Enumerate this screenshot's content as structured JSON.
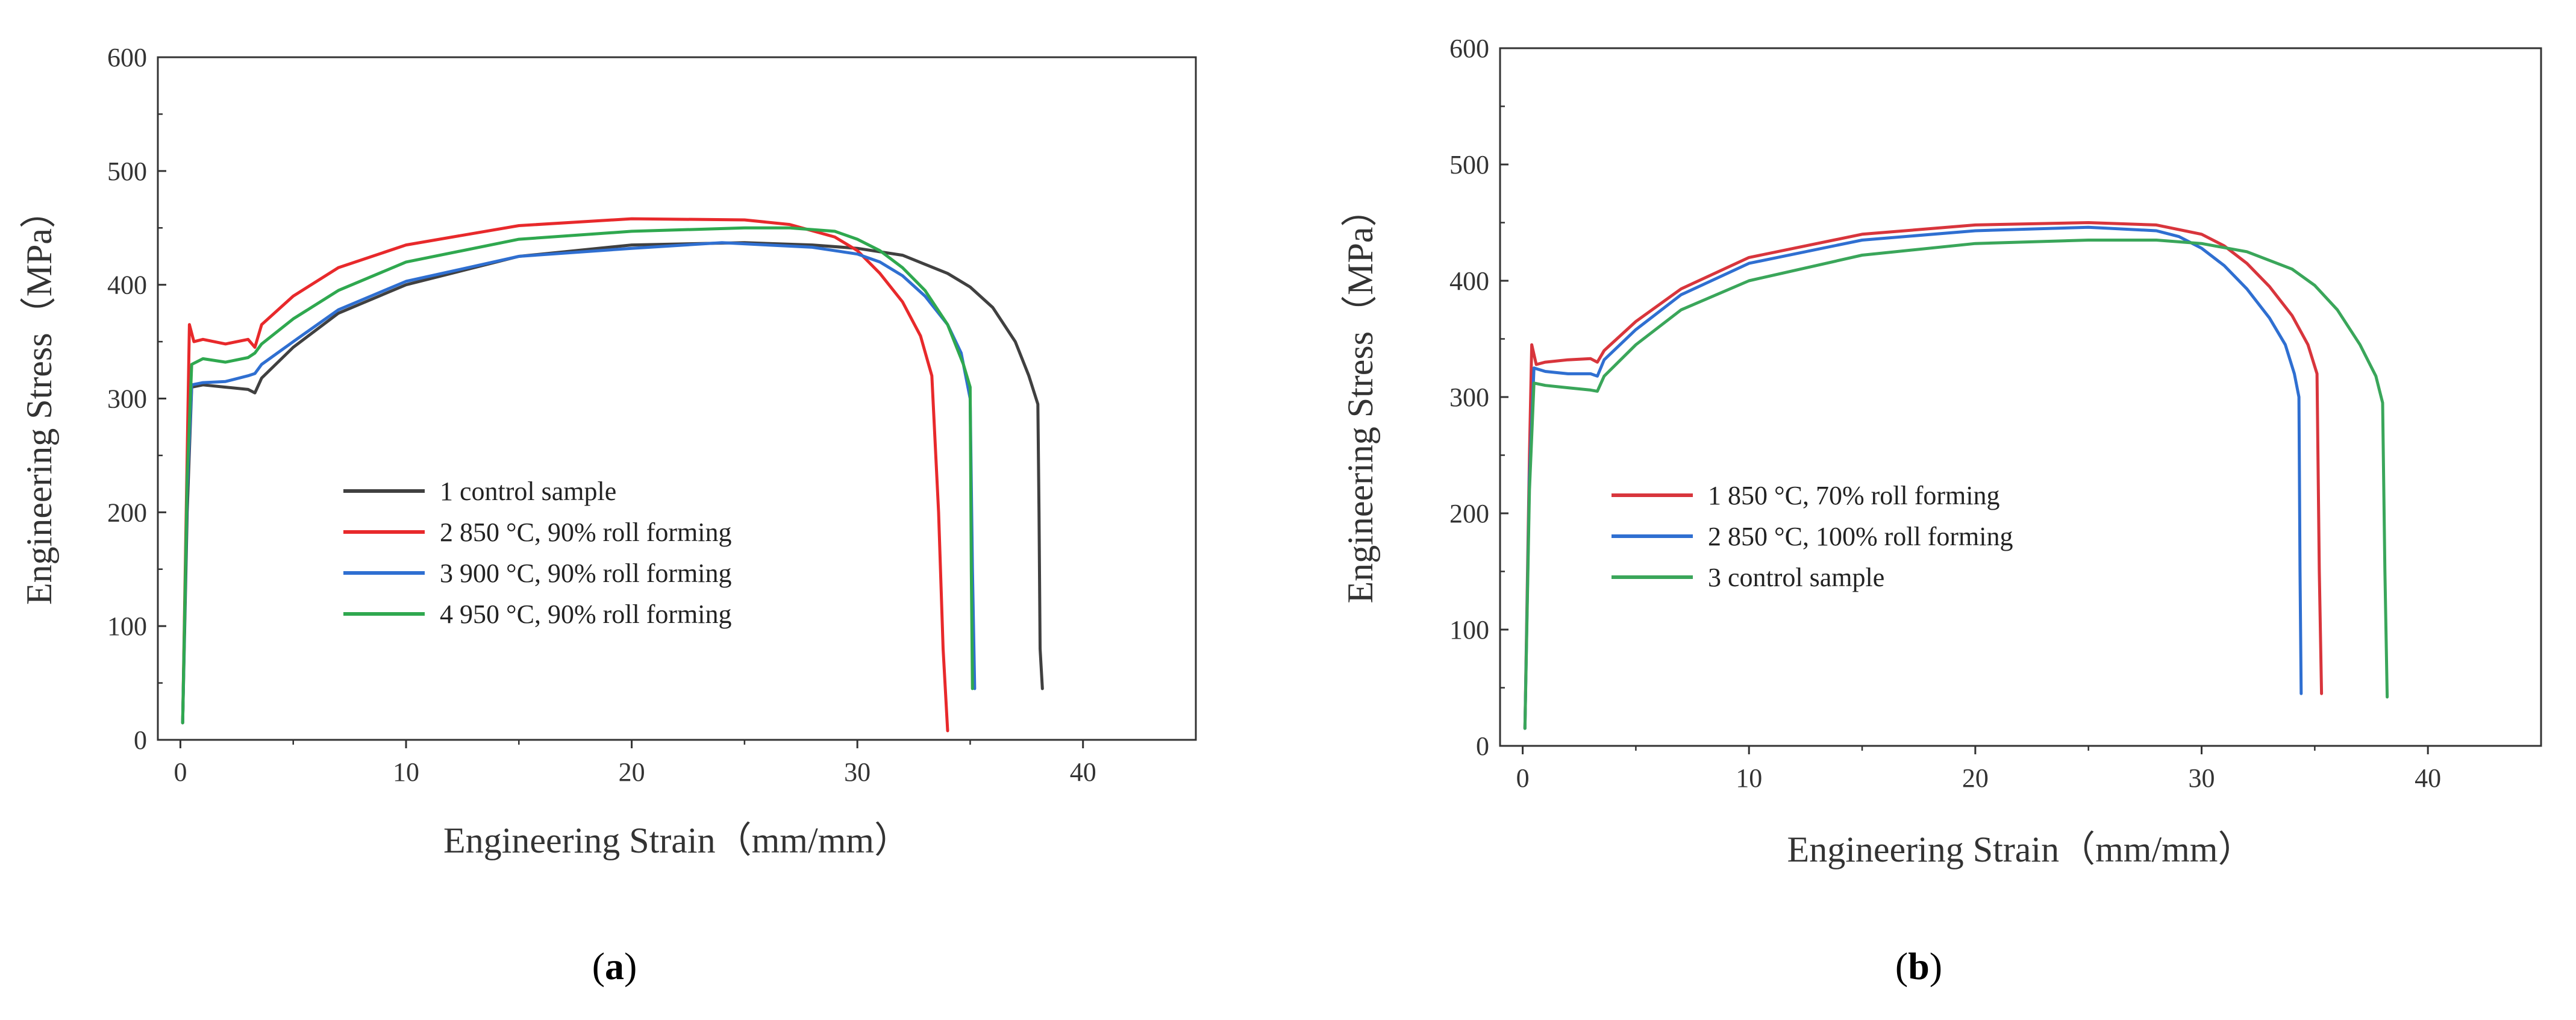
{
  "chart_data": [
    {
      "type": "line",
      "panel_label": "a",
      "xlabel": "Engineering Strain（mm/mm）",
      "ylabel": "Engineering Stress（MPa）",
      "xlim": [
        -1,
        45
      ],
      "ylim": [
        0,
        600
      ],
      "xticks": [
        0,
        10,
        20,
        30,
        40
      ],
      "yticks": [
        0,
        100,
        200,
        300,
        400,
        500,
        600
      ],
      "grid": false,
      "legend_position": "center-left",
      "series": [
        {
          "name": "1 control sample",
          "color": "#404040",
          "x": [
            0.1,
            0.3,
            0.5,
            1.0,
            2.0,
            3.0,
            3.3,
            3.6,
            5,
            7,
            10,
            15,
            20,
            25,
            28,
            30,
            32,
            34,
            35,
            36,
            37,
            37.6,
            38.0,
            38.05,
            38.1,
            38.2
          ],
          "y": [
            15,
            200,
            310,
            312,
            310,
            308,
            305,
            318,
            345,
            375,
            400,
            425,
            435,
            437,
            435,
            432,
            426,
            410,
            398,
            380,
            350,
            320,
            295,
            200,
            80,
            45
          ]
        },
        {
          "name": "2 850 °C, 90% roll forming",
          "color": "#e8292b",
          "x": [
            0.1,
            0.3,
            0.4,
            0.6,
            1.0,
            2.0,
            3.0,
            3.3,
            3.6,
            5,
            7,
            10,
            15,
            20,
            25,
            27,
            29,
            30,
            31,
            32,
            32.8,
            33.3,
            33.6,
            33.8,
            34.0
          ],
          "y": [
            15,
            250,
            365,
            350,
            352,
            348,
            352,
            345,
            365,
            390,
            415,
            435,
            452,
            458,
            457,
            453,
            442,
            430,
            410,
            385,
            355,
            320,
            200,
            80,
            8
          ]
        },
        {
          "name": "3 900 °C, 90% roll forming",
          "color": "#2f6fd1",
          "x": [
            0.1,
            0.3,
            0.5,
            1.0,
            2.0,
            3.0,
            3.3,
            3.6,
            5,
            7,
            10,
            15,
            20,
            24,
            26,
            28,
            30,
            31,
            32,
            33,
            34,
            34.6,
            35.0,
            35.1,
            35.2
          ],
          "y": [
            15,
            220,
            312,
            314,
            315,
            320,
            322,
            330,
            350,
            378,
            403,
            425,
            432,
            437,
            435,
            433,
            427,
            420,
            408,
            390,
            365,
            340,
            300,
            150,
            45
          ]
        },
        {
          "name": "4 950 °C, 90% roll forming",
          "color": "#2fa84f",
          "x": [
            0.1,
            0.3,
            0.5,
            1.0,
            2.0,
            3.0,
            3.3,
            3.6,
            5,
            7,
            10,
            15,
            20,
            25,
            27,
            29,
            30,
            31,
            32,
            33,
            34,
            34.7,
            35.0,
            35.05,
            35.1
          ],
          "y": [
            15,
            230,
            330,
            335,
            332,
            336,
            340,
            348,
            370,
            395,
            420,
            440,
            447,
            450,
            450,
            447,
            440,
            430,
            415,
            395,
            365,
            330,
            310,
            150,
            45
          ]
        }
      ],
      "legend": [
        "1 control sample",
        "2 850 °C, 90% roll forming",
        "3 900 °C, 90% roll forming",
        "4 950 °C, 90% roll forming"
      ]
    },
    {
      "type": "line",
      "panel_label": "b",
      "xlabel": "Engineering Strain（mm/mm）",
      "ylabel": "Engineering Stress（MPa）",
      "xlim": [
        -1,
        45
      ],
      "ylim": [
        0,
        600
      ],
      "xticks": [
        0,
        10,
        20,
        30,
        40
      ],
      "yticks": [
        0,
        100,
        200,
        300,
        400,
        500,
        600
      ],
      "grid": false,
      "legend_position": "center-left",
      "series": [
        {
          "name": "1 850 °C, 70% roll forming",
          "color": "#d8353c",
          "x": [
            0.1,
            0.3,
            0.4,
            0.6,
            1.0,
            2.0,
            3.0,
            3.3,
            3.6,
            5,
            7,
            10,
            15,
            20,
            25,
            28,
            30,
            31,
            32,
            33,
            34,
            34.7,
            35.1,
            35.2,
            35.3
          ],
          "y": [
            15,
            250,
            345,
            328,
            330,
            332,
            333,
            330,
            340,
            365,
            393,
            420,
            440,
            448,
            450,
            448,
            440,
            430,
            415,
            395,
            370,
            345,
            320,
            150,
            45
          ]
        },
        {
          "name": "2 850 °C, 100% roll forming",
          "color": "#2f6fd1",
          "x": [
            0.1,
            0.3,
            0.5,
            1.0,
            2.0,
            3.0,
            3.3,
            3.6,
            5,
            7,
            10,
            15,
            20,
            25,
            28,
            29,
            30,
            31,
            32,
            33,
            33.7,
            34.1,
            34.3,
            34.35,
            34.4
          ],
          "y": [
            15,
            230,
            325,
            322,
            320,
            320,
            318,
            332,
            358,
            388,
            415,
            435,
            443,
            446,
            443,
            438,
            428,
            413,
            393,
            368,
            345,
            320,
            300,
            150,
            45
          ]
        },
        {
          "name": "3 control sample",
          "color": "#3aa65a",
          "x": [
            0.1,
            0.3,
            0.5,
            1.0,
            2.0,
            3.0,
            3.3,
            3.6,
            5,
            7,
            10,
            15,
            20,
            25,
            28,
            30,
            32,
            34,
            35,
            36,
            37,
            37.7,
            38.0,
            38.1,
            38.2
          ],
          "y": [
            15,
            220,
            312,
            310,
            308,
            306,
            305,
            318,
            345,
            375,
            400,
            422,
            432,
            435,
            435,
            432,
            425,
            410,
            396,
            375,
            345,
            318,
            295,
            150,
            42
          ]
        }
      ],
      "legend": [
        "1 850 °C, 70% roll forming",
        "2 850 °C, 100% roll forming",
        "3 control sample"
      ]
    }
  ],
  "captions": {
    "a": "a",
    "b": "b"
  }
}
